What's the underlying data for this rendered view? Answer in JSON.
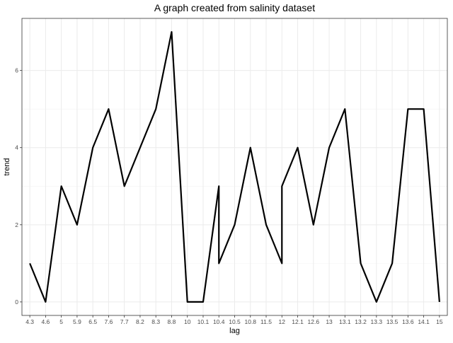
{
  "chart_data": {
    "type": "line",
    "title": "A graph created from salinity dataset",
    "xlabel": "lag",
    "ylabel": "trend",
    "categories": [
      "4.3",
      "4.6",
      "5",
      "5.9",
      "6.5",
      "7.6",
      "7.7",
      "8.2",
      "8.3",
      "8.8",
      "10",
      "10.1",
      "10.4",
      "10.5",
      "10.8",
      "11.5",
      "12",
      "12.1",
      "12.6",
      "13",
      "13.1",
      "13.2",
      "13.3",
      "13.5",
      "13.6",
      "14.1",
      "15"
    ],
    "points": [
      {
        "x": "4.3",
        "y": 1
      },
      {
        "x": "4.6",
        "y": 0
      },
      {
        "x": "5",
        "y": 3
      },
      {
        "x": "5.9",
        "y": 2
      },
      {
        "x": "6.5",
        "y": 4
      },
      {
        "x": "7.6",
        "y": 5
      },
      {
        "x": "7.7",
        "y": 3
      },
      {
        "x": "8.2",
        "y": 4
      },
      {
        "x": "8.3",
        "y": 5
      },
      {
        "x": "8.8",
        "y": 7
      },
      {
        "x": "10",
        "y": 0
      },
      {
        "x": "10.1",
        "y": 0
      },
      {
        "x": "10.4",
        "y": 3
      },
      {
        "x": "10.4",
        "y": 1
      },
      {
        "x": "10.5",
        "y": 2
      },
      {
        "x": "10.8",
        "y": 4
      },
      {
        "x": "11.5",
        "y": 2
      },
      {
        "x": "12",
        "y": 1
      },
      {
        "x": "12",
        "y": 3
      },
      {
        "x": "12.1",
        "y": 4
      },
      {
        "x": "12.6",
        "y": 2
      },
      {
        "x": "13",
        "y": 4
      },
      {
        "x": "13.1",
        "y": 5
      },
      {
        "x": "13.2",
        "y": 1
      },
      {
        "x": "13.3",
        "y": 0
      },
      {
        "x": "13.5",
        "y": 1
      },
      {
        "x": "13.6",
        "y": 5
      },
      {
        "x": "14.1",
        "y": 5
      },
      {
        "x": "15",
        "y": 0
      }
    ],
    "yticks": [
      0,
      2,
      4,
      6
    ],
    "ylim": [
      -0.35,
      7.35
    ],
    "grid": true,
    "legend": "none",
    "line_color": "#000000"
  }
}
